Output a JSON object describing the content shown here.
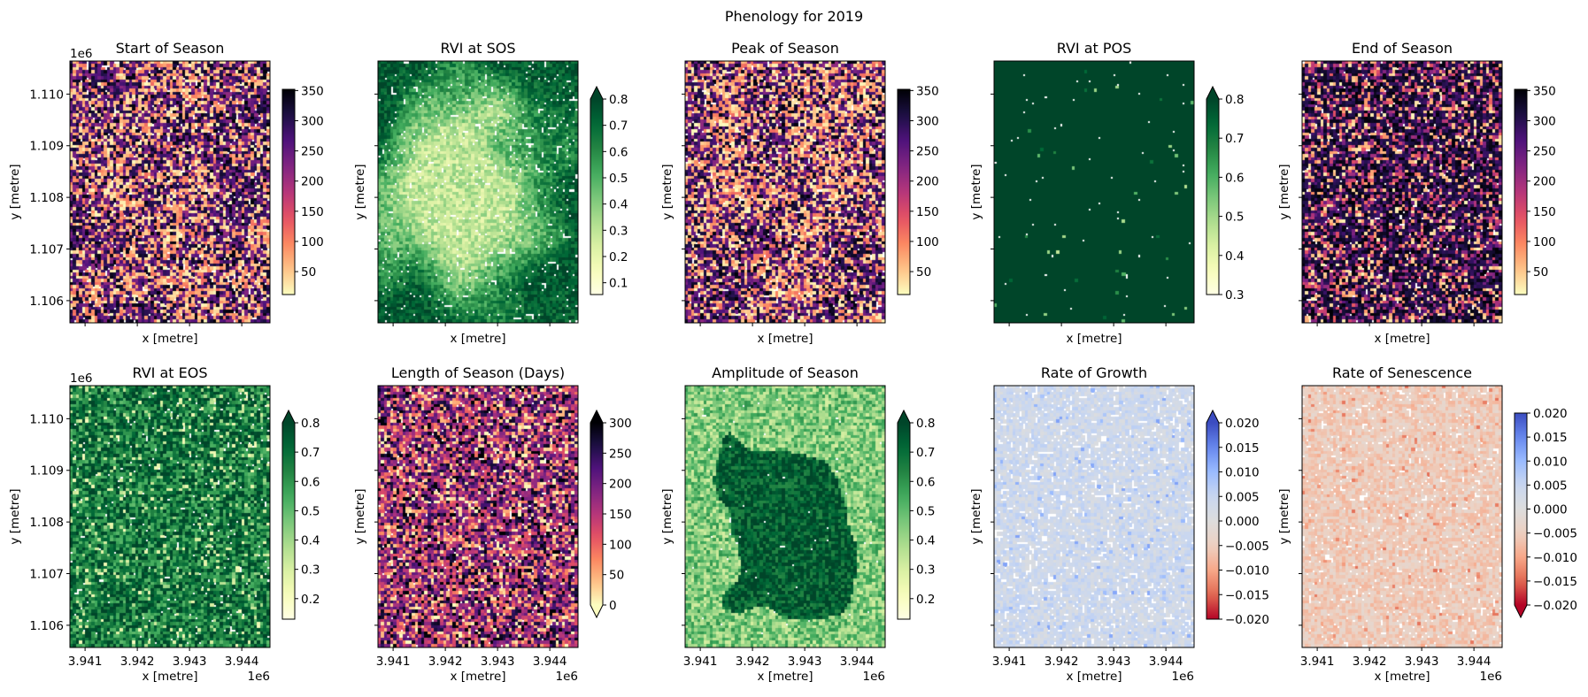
{
  "figure": {
    "suptitle": "Phenology for 2019"
  },
  "chart_data": [
    {
      "type": "heatmap",
      "title": "Start of Season",
      "colormap": "magma_r",
      "vmin": 12,
      "vmax": 352,
      "extend": "neither",
      "colorbar_ticks": [
        "50",
        "100",
        "150",
        "200",
        "250",
        "300",
        "350"
      ],
      "xlabel": "x [metre]",
      "ylabel": "y [metre]"
    },
    {
      "type": "heatmap",
      "title": "RVI at SOS",
      "colormap": "YlGn",
      "vmin": 0.055,
      "vmax": 0.8,
      "extend": "max",
      "colorbar_ticks": [
        "0.1",
        "0.2",
        "0.3",
        "0.4",
        "0.5",
        "0.6",
        "0.7",
        "0.8"
      ],
      "xlabel": "x [metre]",
      "ylabel": "y [metre]"
    },
    {
      "type": "heatmap",
      "title": "Peak of Season",
      "colormap": "magma_r",
      "vmin": 12,
      "vmax": 352,
      "extend": "neither",
      "colorbar_ticks": [
        "50",
        "100",
        "150",
        "200",
        "250",
        "300",
        "350"
      ],
      "xlabel": "x [metre]",
      "ylabel": "y [metre]"
    },
    {
      "type": "heatmap",
      "title": "RVI at POS",
      "colormap": "YlGn",
      "vmin": 0.3,
      "vmax": 0.8,
      "extend": "max",
      "colorbar_ticks": [
        "0.3",
        "0.4",
        "0.5",
        "0.6",
        "0.7",
        "0.8"
      ],
      "xlabel": "x [metre]",
      "ylabel": "y [metre]"
    },
    {
      "type": "heatmap",
      "title": "End of Season",
      "colormap": "magma_r",
      "vmin": 12,
      "vmax": 352,
      "extend": "neither",
      "colorbar_ticks": [
        "50",
        "100",
        "150",
        "200",
        "250",
        "300",
        "350"
      ],
      "xlabel": "x [metre]",
      "ylabel": "y [metre]"
    },
    {
      "type": "heatmap",
      "title": "RVI at EOS",
      "colormap": "YlGn",
      "vmin": 0.13,
      "vmax": 0.8,
      "extend": "max",
      "colorbar_ticks": [
        "0.2",
        "0.3",
        "0.4",
        "0.5",
        "0.6",
        "0.7",
        "0.8"
      ],
      "xlabel": "x [metre]",
      "ylabel": "y [metre]"
    },
    {
      "type": "heatmap",
      "title": "Length of Season (Days)",
      "colormap": "magma_r",
      "vmin": 0,
      "vmax": 300,
      "extend": "both",
      "colorbar_ticks": [
        "0",
        "50",
        "100",
        "150",
        "200",
        "250",
        "300"
      ],
      "xlabel": "x [metre]",
      "ylabel": "y [metre]"
    },
    {
      "type": "heatmap",
      "title": "Amplitude of Season",
      "colormap": "YlGn",
      "vmin": 0.13,
      "vmax": 0.8,
      "extend": "max",
      "colorbar_ticks": [
        "0.2",
        "0.3",
        "0.4",
        "0.5",
        "0.6",
        "0.7",
        "0.8"
      ],
      "xlabel": "x [metre]",
      "ylabel": "y [metre]"
    },
    {
      "type": "heatmap",
      "title": "Rate of Growth",
      "colormap": "coolwarm_r",
      "vmin": -0.02,
      "vmax": 0.02,
      "extend": "max",
      "colorbar_ticks": [
        "−0.020",
        "−0.015",
        "−0.010",
        "−0.005",
        "0.000",
        "0.005",
        "0.010",
        "0.015",
        "0.020"
      ],
      "xlabel": "x [metre]",
      "ylabel": "y [metre]"
    },
    {
      "type": "heatmap",
      "title": "Rate of Senescence",
      "colormap": "coolwarm_r",
      "vmin": -0.02,
      "vmax": 0.02,
      "extend": "min",
      "colorbar_ticks": [
        "−0.020",
        "−0.015",
        "−0.010",
        "−0.005",
        "0.000",
        "0.005",
        "0.010",
        "0.015",
        "0.020"
      ],
      "xlabel": "x [metre]",
      "ylabel": "y [metre]"
    }
  ],
  "axes": {
    "x_ticks": [
      "3.941",
      "3.942",
      "3.943",
      "3.944"
    ],
    "y_ticks": [
      "1.110",
      "1.109",
      "1.108",
      "1.107",
      "1.106"
    ],
    "x_range": [
      3.94071,
      3.94454
    ],
    "y_range": [
      1.10557,
      1.11064
    ],
    "offset_label": "1e6",
    "shared_x_tick_labels": "bottom row only",
    "shared_y_tick_labels": "left column only"
  },
  "colormaps": {
    "magma_r": [
      "#fcfdbf",
      "#fec287",
      "#fb8761",
      "#e55064",
      "#b5367a",
      "#812581",
      "#4f127b",
      "#1c1044",
      "#000004"
    ],
    "YlGn": [
      "#ffffe5",
      "#f7fcb9",
      "#d9f0a3",
      "#addd8e",
      "#78c679",
      "#41ab5d",
      "#238443",
      "#006837",
      "#004529"
    ],
    "coolwarm_r": [
      "#b40426",
      "#e26952",
      "#f7a889",
      "#edd1c2",
      "#dddddd",
      "#c9d7f0",
      "#9abbff",
      "#6788ee",
      "#3b4cc0"
    ]
  }
}
